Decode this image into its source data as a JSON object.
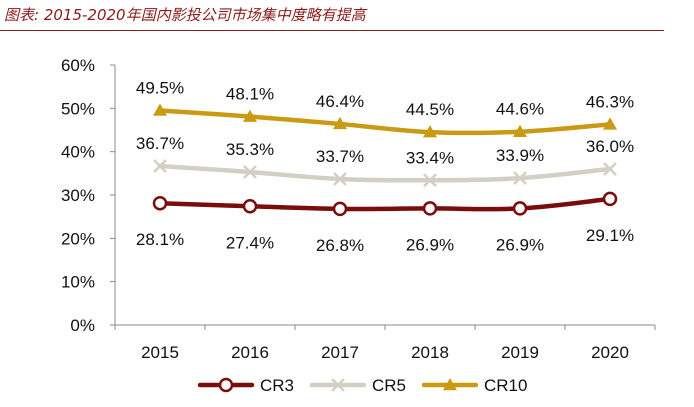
{
  "caption": "图表: 2015-2020年国内影投公司市场集中度略有提高",
  "chart_data": {
    "type": "line",
    "categories": [
      "2015",
      "2016",
      "2017",
      "2018",
      "2019",
      "2020"
    ],
    "ylim": [
      0,
      60
    ],
    "yticks": [
      0,
      10,
      20,
      30,
      40,
      50,
      60
    ],
    "ytick_labels": [
      "0%",
      "10%",
      "20%",
      "30%",
      "40%",
      "50%",
      "60%"
    ],
    "grid": false,
    "legend": "bottom-center",
    "series": [
      {
        "name": "CR3",
        "values": [
          28.1,
          27.4,
          26.8,
          26.9,
          26.9,
          29.1
        ],
        "labels": [
          "28.1%",
          "27.4%",
          "26.8%",
          "26.9%",
          "26.9%",
          "29.1%"
        ],
        "color": "#7b0c0c",
        "marker": "circle",
        "label_position": "below"
      },
      {
        "name": "CR5",
        "values": [
          36.7,
          35.3,
          33.7,
          33.4,
          33.9,
          36.0
        ],
        "labels": [
          "36.7%",
          "35.3%",
          "33.7%",
          "33.4%",
          "33.9%",
          "36.0%"
        ],
        "color": "#d3cfc5",
        "marker": "x",
        "label_position": "above"
      },
      {
        "name": "CR10",
        "values": [
          49.5,
          48.1,
          46.4,
          44.5,
          44.6,
          46.3
        ],
        "labels": [
          "49.5%",
          "48.1%",
          "46.4%",
          "44.5%",
          "44.6%",
          "46.3%"
        ],
        "color": "#c99a12",
        "marker": "triangle",
        "label_position": "above"
      }
    ]
  }
}
